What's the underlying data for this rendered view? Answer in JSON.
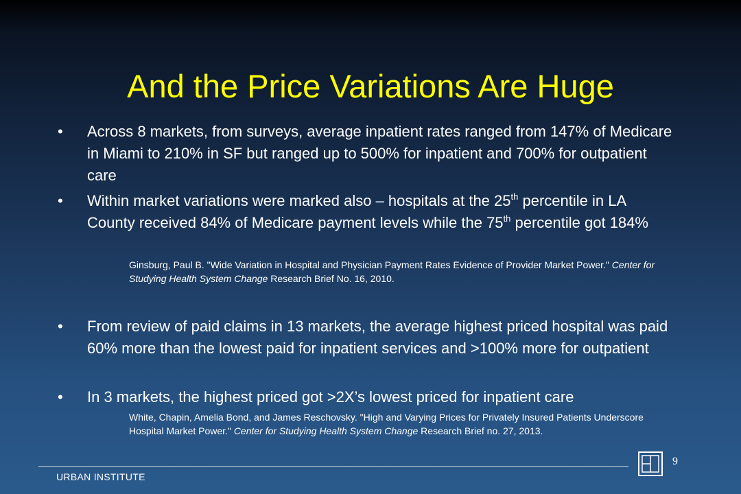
{
  "slide": {
    "title": "And the Price Variations Are Huge",
    "bullet_char": "•",
    "bullets_group1": [
      {
        "text": "Across 8 markets, from surveys, average inpatient rates ranged from 147% of Medicare in Miami to 210% in SF but ranged up to 500% for inpatient and 700% for outpatient care"
      },
      {
        "part1": "Within market variations were marked also – hospitals at the 25",
        "sup1": "th",
        "part2": " percentile in LA County received 84% of Medicare payment levels while the 75",
        "sup2": "th",
        "part3": " percentile got 184%"
      }
    ],
    "citation1": {
      "text1": "Ginsburg, Paul B. \"Wide Variation in Hospital and Physician Payment Rates Evidence of Provider Market Power.\" ",
      "italic": "Center for Studying Health System Change",
      "text2": " Research Brief No. 16, 2010."
    },
    "bullets_group2": [
      {
        "text": "From review of paid claims in 13 markets, the average highest priced hospital was paid 60% more than the lowest paid for inpatient services and >100% more for outpatient"
      },
      {
        "text": "In 3 markets, the highest priced got >2X’s lowest priced for inpatient care"
      }
    ],
    "citation2": {
      "text1": "White, Chapin, Amelia Bond, and James Reschovsky. \"High and Varying Prices for Privately Insured Patients Underscore Hospital Market Power.\" ",
      "italic": "Center for Studying Health System Change",
      "text2": " Research Brief no. 27, 2013."
    },
    "footer": {
      "org": "URBAN INSTITUTE",
      "page_number": "9",
      "logo_icon": "urban-institute-logo-icon"
    },
    "colors": {
      "title": "#ffff00",
      "text": "#ffffff"
    }
  }
}
